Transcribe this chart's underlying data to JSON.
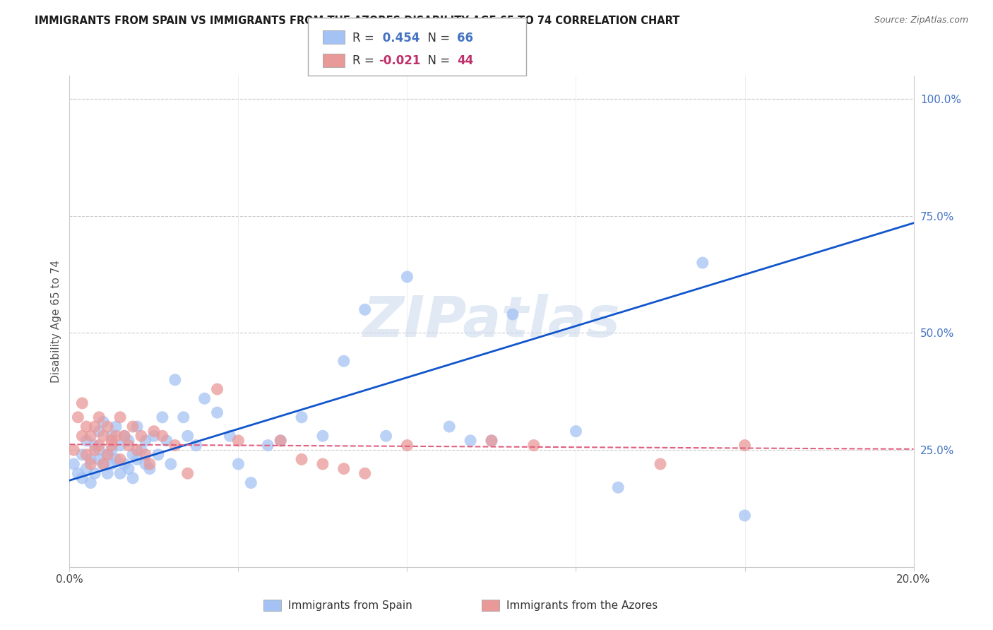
{
  "title": "IMMIGRANTS FROM SPAIN VS IMMIGRANTS FROM THE AZORES DISABILITY AGE 65 TO 74 CORRELATION CHART",
  "source": "Source: ZipAtlas.com",
  "ylabel": "Disability Age 65 to 74",
  "xlim": [
    0.0,
    0.2
  ],
  "ylim": [
    0.0,
    1.05
  ],
  "xtick_positions": [
    0.0,
    0.04,
    0.08,
    0.12,
    0.16,
    0.2
  ],
  "xticklabels": [
    "0.0%",
    "",
    "",
    "",
    "",
    "20.0%"
  ],
  "yticks_right": [
    0.25,
    0.5,
    0.75,
    1.0
  ],
  "yticklabels_right": [
    "25.0%",
    "50.0%",
    "75.0%",
    "100.0%"
  ],
  "blue_R": 0.454,
  "blue_N": 66,
  "pink_R": -0.021,
  "pink_N": 44,
  "blue_color": "#a4c2f4",
  "pink_color": "#ea9999",
  "trend_blue_color": "#1155cc",
  "trend_pink_color": "#e06080",
  "watermark_text": "ZIPatlas",
  "background_color": "#ffffff",
  "grid_color": "#cccccc",
  "blue_trend_x": [
    0.0,
    0.2
  ],
  "blue_trend_y": [
    0.185,
    0.735
  ],
  "pink_trend_x": [
    0.0,
    0.2
  ],
  "pink_trend_y": [
    0.262,
    0.252
  ],
  "blue_x": [
    0.001,
    0.002,
    0.003,
    0.003,
    0.004,
    0.004,
    0.005,
    0.005,
    0.006,
    0.006,
    0.007,
    0.007,
    0.007,
    0.008,
    0.008,
    0.009,
    0.009,
    0.01,
    0.01,
    0.01,
    0.011,
    0.011,
    0.012,
    0.012,
    0.013,
    0.013,
    0.014,
    0.014,
    0.015,
    0.015,
    0.016,
    0.016,
    0.017,
    0.018,
    0.018,
    0.019,
    0.02,
    0.021,
    0.022,
    0.023,
    0.024,
    0.025,
    0.027,
    0.028,
    0.03,
    0.032,
    0.035,
    0.038,
    0.04,
    0.043,
    0.047,
    0.05,
    0.055,
    0.06,
    0.065,
    0.07,
    0.075,
    0.09,
    0.1,
    0.105,
    0.12,
    0.13,
    0.15,
    0.08,
    0.095,
    0.16
  ],
  "blue_y": [
    0.22,
    0.2,
    0.19,
    0.24,
    0.21,
    0.27,
    0.18,
    0.23,
    0.2,
    0.26,
    0.23,
    0.25,
    0.29,
    0.22,
    0.31,
    0.24,
    0.2,
    0.25,
    0.22,
    0.28,
    0.23,
    0.3,
    0.26,
    0.2,
    0.22,
    0.28,
    0.27,
    0.21,
    0.24,
    0.19,
    0.23,
    0.3,
    0.25,
    0.22,
    0.27,
    0.21,
    0.28,
    0.24,
    0.32,
    0.27,
    0.22,
    0.4,
    0.32,
    0.28,
    0.26,
    0.36,
    0.33,
    0.28,
    0.22,
    0.18,
    0.26,
    0.27,
    0.32,
    0.28,
    0.44,
    0.55,
    0.28,
    0.3,
    0.27,
    0.54,
    0.29,
    0.17,
    0.65,
    0.62,
    0.27,
    0.11
  ],
  "pink_x": [
    0.001,
    0.002,
    0.003,
    0.003,
    0.004,
    0.004,
    0.005,
    0.005,
    0.006,
    0.006,
    0.007,
    0.007,
    0.008,
    0.008,
    0.009,
    0.009,
    0.01,
    0.01,
    0.011,
    0.012,
    0.012,
    0.013,
    0.014,
    0.015,
    0.016,
    0.017,
    0.018,
    0.019,
    0.02,
    0.022,
    0.025,
    0.028,
    0.035,
    0.04,
    0.05,
    0.055,
    0.06,
    0.065,
    0.07,
    0.08,
    0.1,
    0.11,
    0.14,
    0.16
  ],
  "pink_y": [
    0.25,
    0.32,
    0.28,
    0.35,
    0.24,
    0.3,
    0.28,
    0.22,
    0.3,
    0.25,
    0.26,
    0.32,
    0.28,
    0.22,
    0.24,
    0.3,
    0.27,
    0.26,
    0.28,
    0.23,
    0.32,
    0.28,
    0.26,
    0.3,
    0.25,
    0.28,
    0.24,
    0.22,
    0.29,
    0.28,
    0.26,
    0.2,
    0.38,
    0.27,
    0.27,
    0.23,
    0.22,
    0.21,
    0.2,
    0.26,
    0.27,
    0.26,
    0.22,
    0.26
  ]
}
